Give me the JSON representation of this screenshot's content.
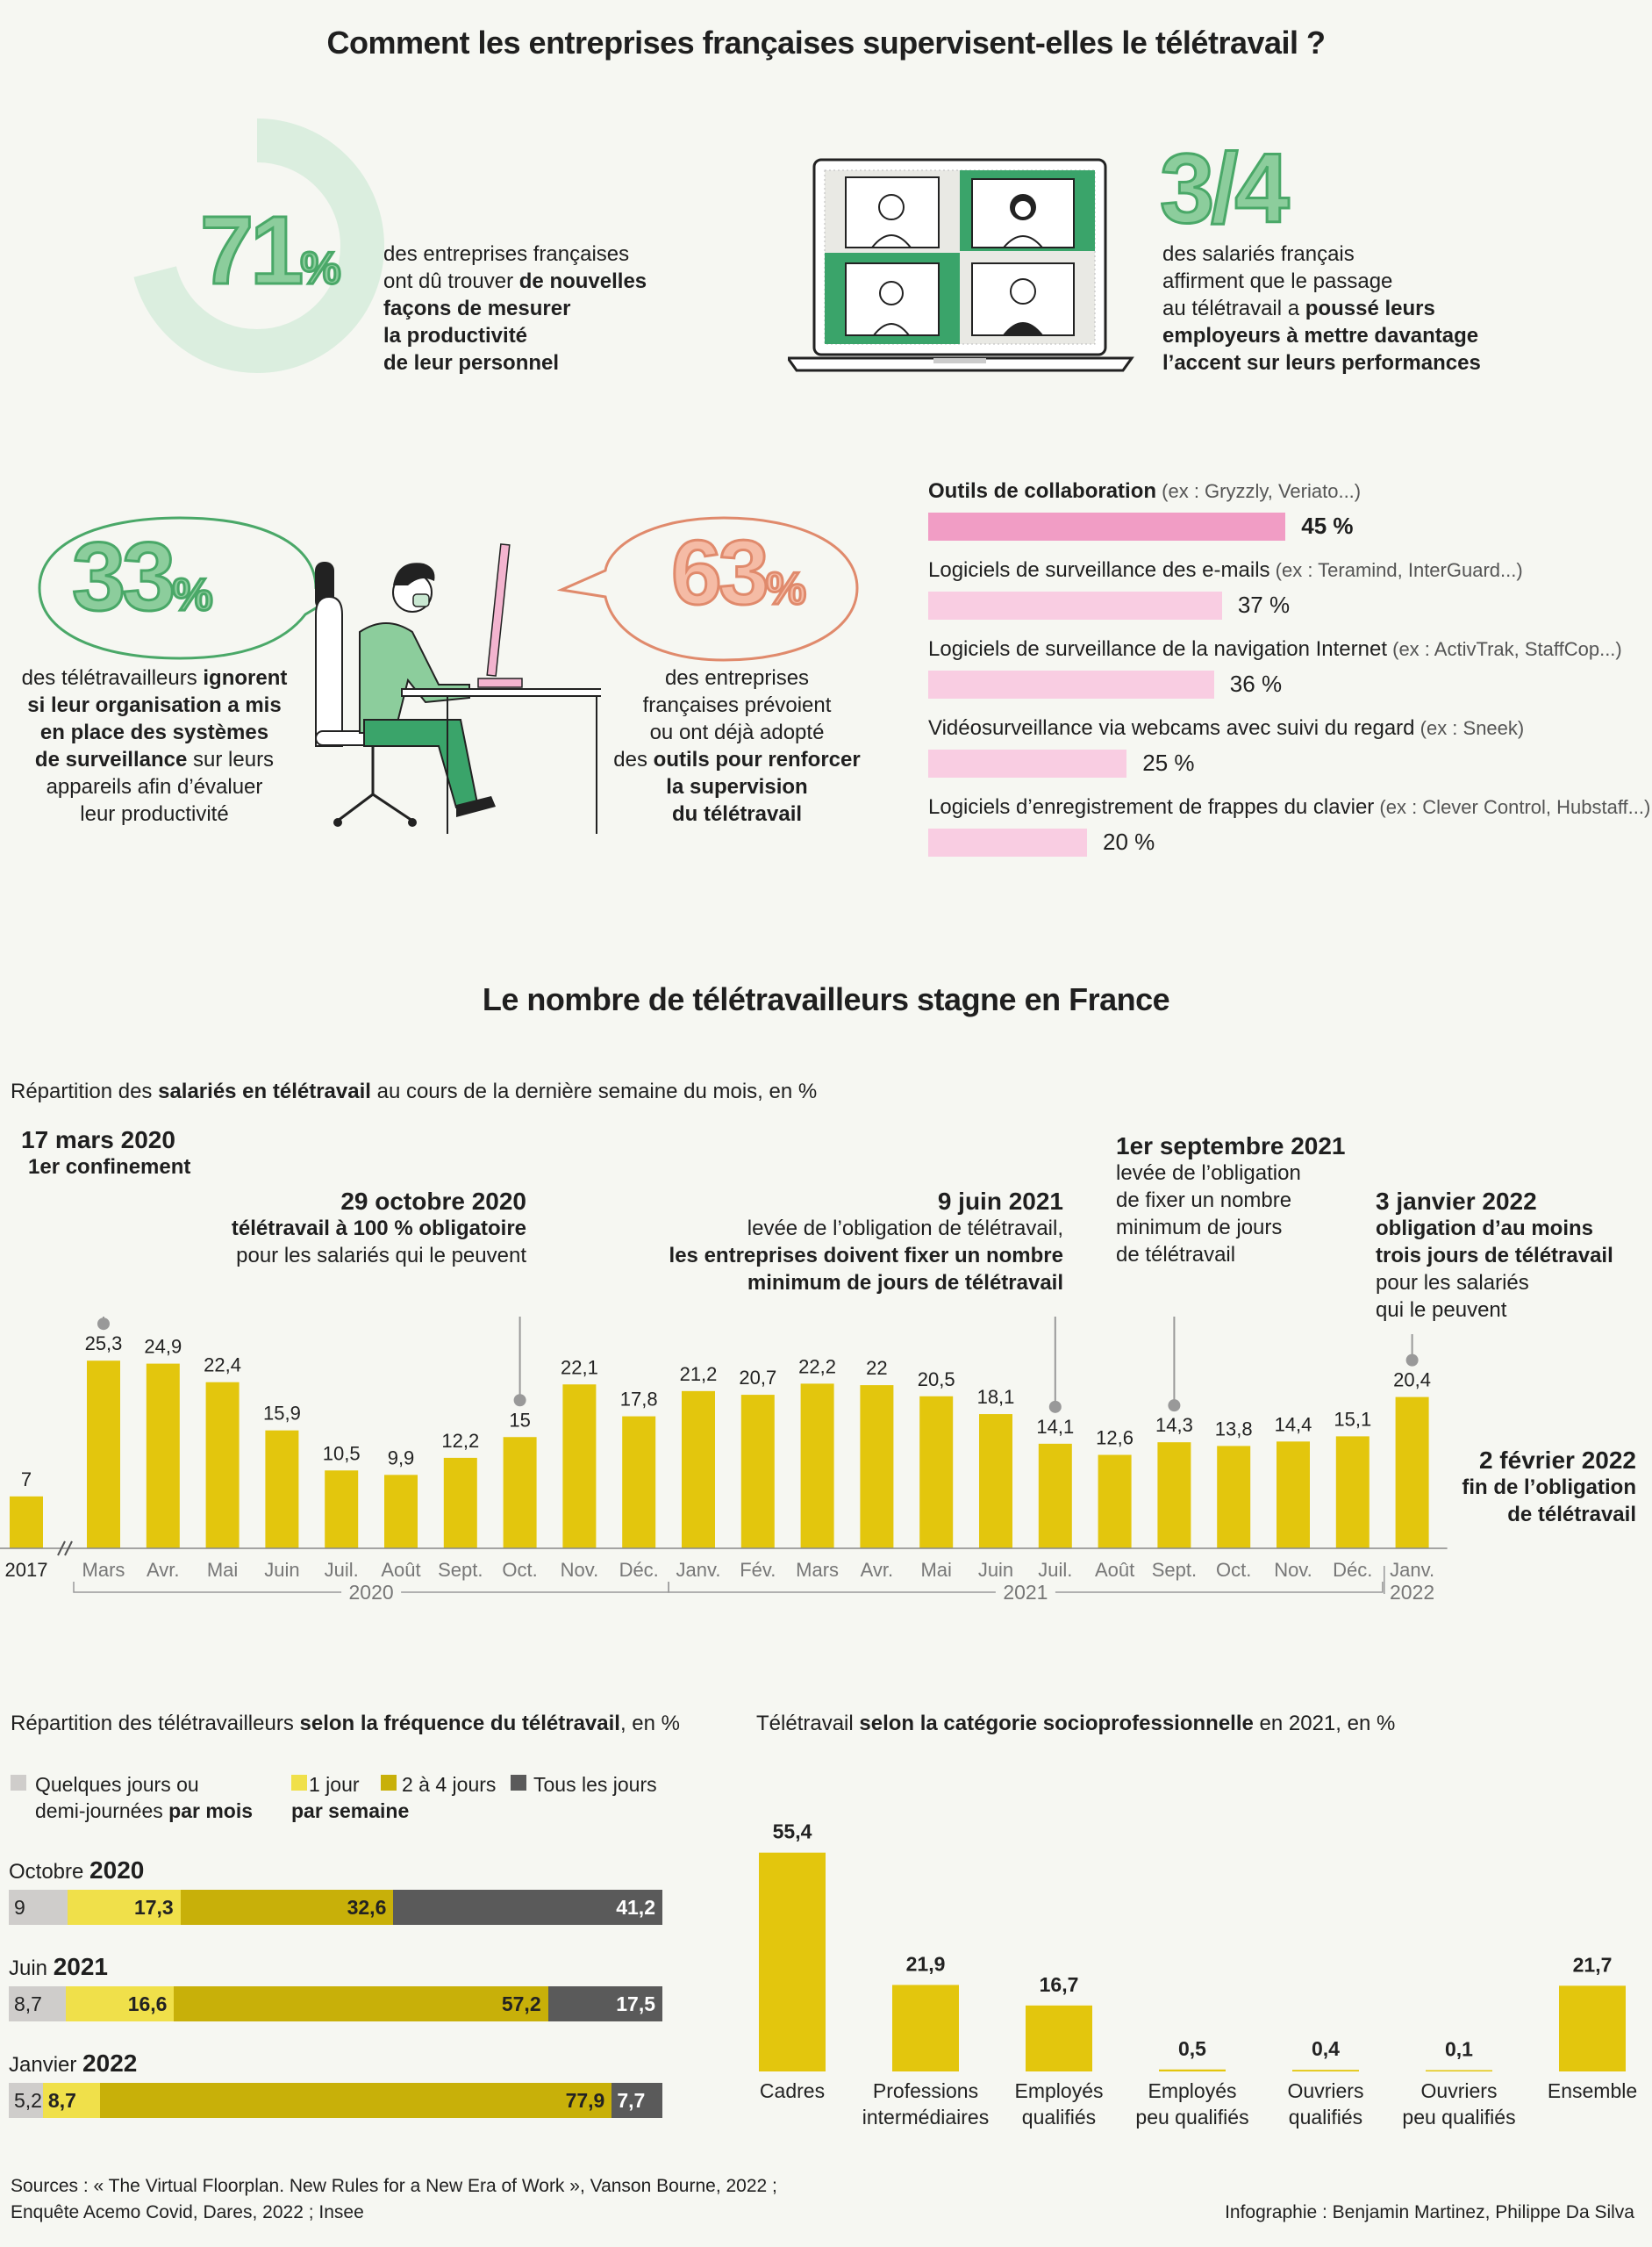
{
  "title_main": "Comment les entreprises françaises supervisent-elles le télétravail ?",
  "stat_71": {
    "number": "71",
    "unit": "%",
    "value": 71,
    "line1": "des entreprises françaises",
    "line2_pre": "ont dû trouver ",
    "line2_bold": "de nouvelles",
    "line3": "façons de mesurer",
    "line4": "la productivité",
    "line5": "de leur personnel"
  },
  "stat_34": {
    "number": "3/4",
    "line1": "des salariés français",
    "line2": "affirment que le passage",
    "line3_pre": "au télétravail a ",
    "line3_bold": "poussé leurs",
    "line4": "employeurs à mettre davantage",
    "line5": "l’accent sur leurs performances"
  },
  "stat_33": {
    "number": "33",
    "unit": "%",
    "line1_pre": "des télétravailleurs ",
    "line1_bold": "ignorent",
    "line2": "si leur organisation a mis",
    "line3": "en place des systèmes",
    "line4_bold": "de surveillance",
    "line4_post": " sur leurs",
    "line5": "appareils afin d’évaluer",
    "line6": "leur productivité"
  },
  "stat_63": {
    "number": "63",
    "unit": "%",
    "line1": "des entreprises",
    "line2": "françaises prévoient",
    "line3": "ou ont déjà adopté",
    "line4_pre": "des ",
    "line4_bold": "outils pour renforcer",
    "line5": "la supervision",
    "line6": "du télétravail"
  },
  "tools_chart": {
    "items": [
      {
        "label": "Outils de collaboration",
        "example": "(ex : Gryzzly, Veriato...)",
        "value": 45,
        "display": "45 %",
        "color": "#f19dc5"
      },
      {
        "label": "Logiciels de surveillance des e-mails",
        "example": "(ex : Teramind, InterGuard...)",
        "value": 37,
        "display": "37 %",
        "color": "#f9cde2"
      },
      {
        "label": "Logiciels de surveillance de la navigation Internet",
        "example": "(ex : ActivTrak, StaffCop...)",
        "value": 36,
        "display": "36 %",
        "color": "#f9cde2"
      },
      {
        "label": "Vidéosurveillance via webcams avec suivi du regard",
        "example": "(ex : Sneek)",
        "value": 25,
        "display": "25 %",
        "color": "#f9cde2"
      },
      {
        "label": "Logiciels d’enregistrement de frappes du clavier",
        "example": "(ex : Clever Control, Hubstaff...)",
        "value": 20,
        "display": "20 %",
        "color": "#f9cde2"
      }
    ]
  },
  "title_second": "Le nombre de télétravailleurs stagne en France",
  "monthly": {
    "subtitle_pre": "Répartition des ",
    "subtitle_bold": "salariés en télétravail",
    "subtitle_post": " au cours de la dernière semaine du mois, en %",
    "year_2020": "2020",
    "year_2021": "2021",
    "year_2022": "2022",
    "final_note_1": "2 février 2022",
    "final_note_2": "fin de l’obligation",
    "final_note_3": "de télétravail",
    "annotations": {
      "a1_h": "17 mars 2020",
      "a1_l1": "1er confinement",
      "a2_h": "29 octobre 2020",
      "a2_l1": "télétravail à 100 % obligatoire",
      "a2_l2": "pour les salariés qui le peuvent",
      "a3_h": "9 juin 2021",
      "a3_l1": "levée de l’obligation de télétravail,",
      "a3_l2": "les entreprises doivent fixer un nombre",
      "a3_l3": "minimum de jours de télétravail",
      "a4_h": "1er septembre 2021",
      "a4_l1": "levée de l’obligation",
      "a4_l2": "de fixer un nombre",
      "a4_l3": "minimum de jours",
      "a4_l4": "de télétravail",
      "a5_h": "3 janvier 2022",
      "a5_l1": "obligation d’au moins",
      "a5_l2": "trois jours de télétravail",
      "a5_l3": "pour les salariés",
      "a5_l4": "qui le peuvent"
    }
  },
  "chart_data": [
    {
      "type": "bar",
      "categories": [
        "2017",
        "Mars",
        "Avr.",
        "Mai",
        "Juin",
        "Juil.",
        "Août",
        "Sept.",
        "Oct.",
        "Nov.",
        "Déc.",
        "Janv.",
        "Fév.",
        "Mars",
        "Avr.",
        "Mai",
        "Juin",
        "Juil.",
        "Août",
        "Sept.",
        "Oct.",
        "Nov.",
        "Déc.",
        "Janv."
      ],
      "values": [
        7,
        25.3,
        24.9,
        22.4,
        15.9,
        10.5,
        9.9,
        12.2,
        15,
        22.1,
        17.8,
        21.2,
        20.7,
        22.2,
        22,
        20.5,
        18.1,
        14.1,
        12.6,
        14.3,
        13.8,
        14.4,
        15.1,
        20.4
      ],
      "labels": [
        "7",
        "25,3",
        "24,9",
        "22,4",
        "15,9",
        "10,5",
        "9,9",
        "12,2",
        "15",
        "22,1",
        "17,8",
        "21,2",
        "20,7",
        "22,2",
        "22",
        "20,5",
        "18,1",
        "14,1",
        "12,6",
        "14,3",
        "13,8",
        "14,4",
        "15,1",
        "20,4"
      ],
      "color": "#e3c60d"
    },
    {
      "type": "bar",
      "subtype": "stacked-horizontal",
      "title_pre": "Répartition des télétravailleurs ",
      "title_bold": "selon la fréquence du télétravail",
      "title_post": ", en %",
      "legend": [
        {
          "name_l1": "Quelques jours ou",
          "name_l2_pre": "demi-journées ",
          "name_l2_bold": "par mois",
          "color": "#cfcdcb"
        },
        {
          "name_l1": "1 jour",
          "color": "#f0e04a"
        },
        {
          "name_l1": "2 à 4 jours",
          "color": "#c8b009"
        },
        {
          "name_l1": "Tous les jours",
          "color": "#5a5a5a"
        }
      ],
      "legend_note": "par semaine",
      "rows": [
        {
          "label_pre": "Octobre ",
          "label_bold": "2020",
          "values": [
            9,
            17.3,
            32.6,
            41.2
          ],
          "labels": [
            "9",
            "17,3",
            "32,6",
            "41,2"
          ]
        },
        {
          "label_pre": "Juin ",
          "label_bold": "2021",
          "values": [
            8.7,
            16.6,
            57.2,
            17.5
          ],
          "labels": [
            "8,7",
            "16,6",
            "57,2",
            "17,5"
          ]
        },
        {
          "label_pre": "Janvier ",
          "label_bold": "2022",
          "values": [
            5.2,
            8.7,
            77.9,
            7.7
          ],
          "labels": [
            "5,2",
            "8,7",
            "77,9",
            "7,7"
          ]
        }
      ]
    },
    {
      "type": "bar",
      "title_pre": "Télétravail ",
      "title_bold": "selon la catégorie socioprofessionnelle",
      "title_post": " en 2021, en %",
      "categories": [
        [
          "Cadres"
        ],
        [
          "Professions",
          "intermédiaires"
        ],
        [
          "Employés",
          "qualifiés"
        ],
        [
          "Employés",
          "peu qualifiés"
        ],
        [
          "Ouvriers",
          "qualifiés"
        ],
        [
          "Ouvriers",
          "peu qualifiés"
        ],
        [
          "Ensemble"
        ]
      ],
      "values": [
        55.4,
        21.9,
        16.7,
        0.5,
        0.4,
        0.1,
        21.7
      ],
      "labels": [
        "55,4",
        "21,9",
        "16,7",
        "0,5",
        "0,4",
        "0,1",
        "21,7"
      ],
      "color": "#e3c60d"
    }
  ],
  "sources_l1": "Sources : « The Virtual Floorplan. New Rules for a New Era of Work », Vanson Bourne, 2022 ;",
  "sources_l2": "Enquête Acemo Covid, Dares, 2022 ; Insee",
  "credits": "Infographie : Benjamin Martinez, Philippe Da Silva"
}
